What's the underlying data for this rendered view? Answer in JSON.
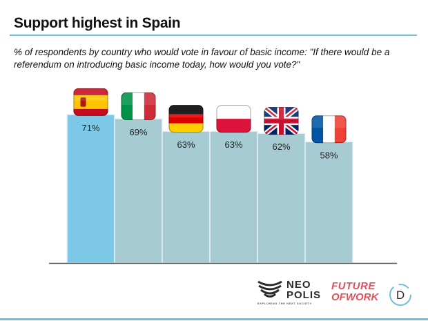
{
  "header": {
    "title": "Support highest in Spain",
    "subtitle": "% of respondents by country who would vote in favour of basic income: \"If there would be a referendum on introducing basic income today, how would you vote?\""
  },
  "chart_data": {
    "type": "bar",
    "categories": [
      "Spain",
      "Italy",
      "Germany",
      "Poland",
      "United Kingdom",
      "France"
    ],
    "values": [
      71,
      69,
      63,
      63,
      62,
      58
    ],
    "data_labels": [
      "71%",
      "69%",
      "63%",
      "63%",
      "62%",
      "58%"
    ],
    "title": "Support highest in Spain",
    "ylim": [
      0,
      100
    ],
    "grid": false,
    "category_icons": [
      "spain-flag-icon",
      "italy-flag-icon",
      "germany-flag-icon",
      "poland-flag-icon",
      "uk-flag-icon",
      "france-flag-icon"
    ],
    "colors": {
      "highlight": "#7cc8e6",
      "bar": "#a7cbd3",
      "bar_edge": "#e7f2f5",
      "axis": "#555555"
    }
  },
  "footer": {
    "neopolis_line1": "NEO",
    "neopolis_line2": "POLIS",
    "neopolis_tagline": "EXPLORING THE NEXT SOCIETY",
    "fow_line1": "FUTURE",
    "fow_line2": "OFWORK",
    "logo_d": "D",
    "brand_colors": {
      "rule": "#6cc0dd",
      "fow": "#e0525c",
      "dark": "#2b2b2b"
    }
  }
}
